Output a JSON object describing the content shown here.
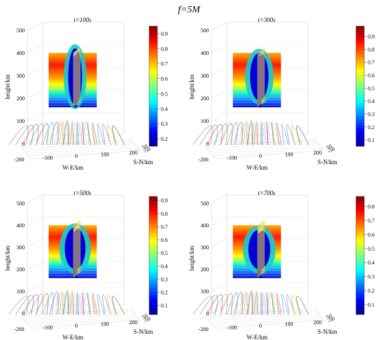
{
  "figure": {
    "title": "f=5M"
  },
  "chart_data": [
    {
      "type": "3d-surface",
      "title": "t=100s",
      "xlabel": "W-E/km",
      "ylabel": "S-N/km",
      "zlabel": "height/km",
      "x_ticks": [
        "-200",
        "-100",
        "0",
        "100",
        "200"
      ],
      "y_ticks": [
        "-50",
        "50"
      ],
      "z_ticks": [
        "0",
        "100",
        "200",
        "300",
        "400",
        "500"
      ],
      "colorbar_ticks": [
        0.2,
        0.3,
        0.4,
        0.5,
        0.6,
        0.7,
        0.8,
        0.9
      ],
      "colorbar_range": [
        0.15,
        0.95
      ],
      "depletion_top_km": 420,
      "depletion_bottom_km": 170,
      "depletion_width_km": 60
    },
    {
      "type": "3d-surface",
      "title": "t=300s",
      "xlabel": "W-E/km",
      "ylabel": "S-N/km",
      "zlabel": "height/km",
      "x_ticks": [
        "-200",
        "-100",
        "0",
        "100",
        "200"
      ],
      "y_ticks": [
        "-50",
        "50"
      ],
      "z_ticks": [
        "0",
        "100",
        "200",
        "300",
        "400",
        "500"
      ],
      "colorbar_ticks": [
        0.1,
        0.2,
        0.3,
        0.4,
        0.5,
        0.6,
        0.7,
        0.8,
        0.9
      ],
      "colorbar_range": [
        0.05,
        0.98
      ],
      "depletion_top_km": 400,
      "depletion_bottom_km": 190,
      "depletion_width_km": 80
    },
    {
      "type": "3d-surface",
      "title": "t=500s",
      "xlabel": "W-E/km",
      "ylabel": "S-N/km",
      "zlabel": "height/km",
      "x_ticks": [
        "-200",
        "-100",
        "0",
        "100",
        "200"
      ],
      "y_ticks": [
        "-50",
        "50"
      ],
      "z_ticks": [
        "0",
        "100",
        "200",
        "300",
        "400",
        "500"
      ],
      "colorbar_ticks": [
        0.1,
        0.2,
        0.3,
        0.4,
        0.5,
        0.6,
        0.7,
        0.8,
        0.9
      ],
      "colorbar_range": [
        0.03,
        0.93
      ],
      "depletion_top_km": 390,
      "depletion_bottom_km": 200,
      "depletion_width_km": 90
    },
    {
      "type": "3d-surface",
      "title": "t=700s",
      "xlabel": "W-E/km",
      "ylabel": "S-N/km",
      "zlabel": "height/km",
      "x_ticks": [
        "-200",
        "-100",
        "0",
        "100",
        "200"
      ],
      "y_ticks": [
        "-50",
        "50"
      ],
      "z_ticks": [
        "0",
        "100",
        "200",
        "300",
        "400",
        "500"
      ],
      "colorbar_ticks": [
        0.1,
        0.2,
        0.3,
        0.4,
        0.5,
        0.6,
        0.7,
        0.8
      ],
      "colorbar_range": [
        0.03,
        0.87
      ],
      "depletion_top_km": 380,
      "depletion_bottom_km": 200,
      "depletion_width_km": 95
    }
  ]
}
